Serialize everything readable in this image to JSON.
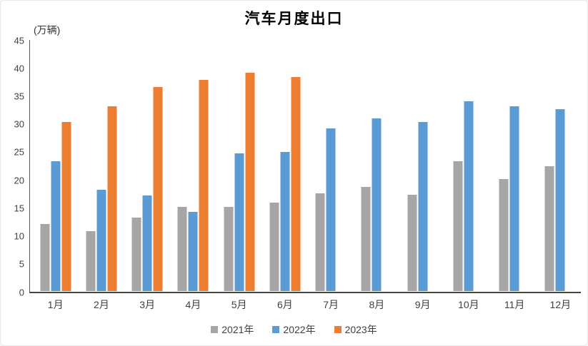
{
  "chart_data": {
    "type": "bar",
    "title": "汽车月度出口",
    "ylabel": "(万辆)",
    "xlabel": "",
    "categories": [
      "1月",
      "2月",
      "3月",
      "4月",
      "5月",
      "6月",
      "7月",
      "8月",
      "9月",
      "10月",
      "11月",
      "12月"
    ],
    "series": [
      {
        "name": "2021年",
        "color": "#A6A6A6",
        "values": [
          11.9,
          10.6,
          13.1,
          15.0,
          15.0,
          15.8,
          17.4,
          18.6,
          17.2,
          23.1,
          19.9,
          22.3
        ]
      },
      {
        "name": "2022年",
        "color": "#5B9BD5",
        "values": [
          23.1,
          18.0,
          17.0,
          14.1,
          24.5,
          24.8,
          29.0,
          30.8,
          30.2,
          33.9,
          33.0,
          32.5
        ]
      },
      {
        "name": "2023年",
        "color": "#ED7D31",
        "values": [
          30.2,
          33.0,
          36.4,
          37.7,
          38.9,
          38.2,
          null,
          null,
          null,
          null,
          null,
          null
        ]
      }
    ],
    "ylim": [
      0,
      45
    ],
    "ytick_step": 5,
    "grid": false,
    "legend_position": "bottom",
    "axis_color": "#595959",
    "text_color": "#3f3f3f"
  }
}
